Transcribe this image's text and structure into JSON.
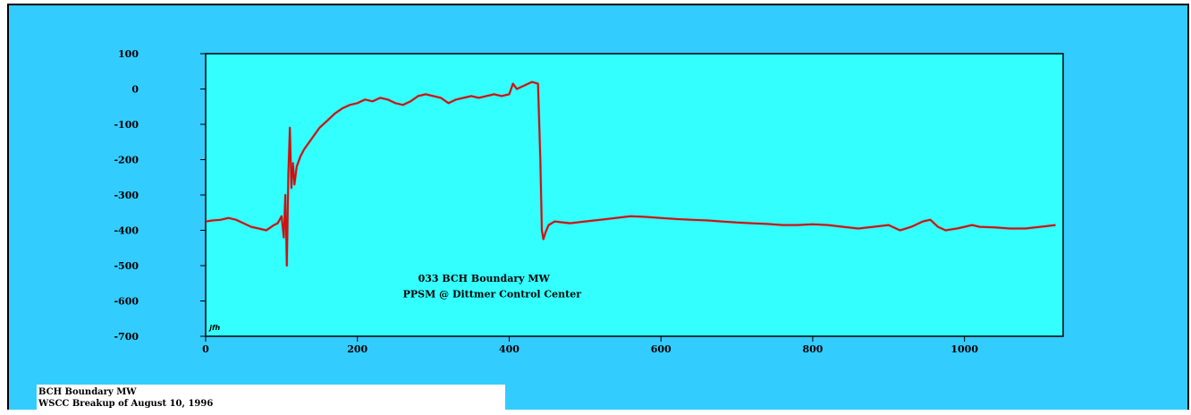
{
  "caption": {
    "line1": "BCH Boundary MW",
    "line2": "WSCC Breakup of August 10, 1996"
  },
  "colors": {
    "background": "#33ccff",
    "plot_area": "#33ffff",
    "trace": "#cc1111",
    "trace_shadow": "#888888"
  },
  "chart_data": {
    "type": "line",
    "title": "",
    "xlabel": "",
    "ylabel": "",
    "xlim": [
      0,
      1130
    ],
    "ylim": [
      -700,
      100
    ],
    "x_ticks": [
      0,
      200,
      400,
      600,
      800,
      1000
    ],
    "y_ticks": [
      100,
      0,
      -100,
      -200,
      -300,
      -400,
      -500,
      -600,
      -700
    ],
    "grid": false,
    "annotations": [
      {
        "text": "033 BCH Boundary MW",
        "x": 280,
        "y": -545
      },
      {
        "text": "PPSM @ Dittmer Control Center",
        "x": 260,
        "y": -590
      },
      {
        "text": "jfh",
        "x": 5,
        "y": -682
      }
    ],
    "series": [
      {
        "x": [
          0,
          10,
          20,
          30,
          40,
          50,
          60,
          70,
          80,
          90,
          95,
          100,
          103,
          105,
          107,
          109,
          111,
          113,
          115,
          117,
          120,
          125,
          130,
          140,
          150,
          160,
          170,
          180,
          190,
          200,
          210,
          220,
          230,
          240,
          250,
          260,
          270,
          280,
          290,
          300,
          310,
          320,
          330,
          340,
          350,
          360,
          370,
          380,
          390,
          400,
          405,
          410,
          420,
          430,
          438,
          441,
          443,
          445,
          448,
          452,
          460,
          480,
          500,
          520,
          540,
          560,
          580,
          600,
          620,
          640,
          660,
          680,
          700,
          720,
          740,
          760,
          780,
          800,
          820,
          840,
          860,
          880,
          900,
          915,
          930,
          945,
          955,
          965,
          975,
          990,
          1000,
          1010,
          1020,
          1040,
          1060,
          1080,
          1100,
          1120
        ],
        "values": [
          -375,
          -372,
          -370,
          -365,
          -370,
          -380,
          -390,
          -395,
          -400,
          -385,
          -380,
          -360,
          -420,
          -300,
          -500,
          -240,
          -110,
          -280,
          -210,
          -270,
          -220,
          -190,
          -170,
          -140,
          -110,
          -90,
          -70,
          -55,
          -45,
          -40,
          -30,
          -35,
          -25,
          -30,
          -40,
          -45,
          -35,
          -20,
          -15,
          -20,
          -25,
          -40,
          -30,
          -25,
          -20,
          -25,
          -20,
          -15,
          -20,
          -15,
          15,
          0,
          10,
          20,
          15,
          -200,
          -400,
          -425,
          -405,
          -385,
          -375,
          -380,
          -375,
          -370,
          -365,
          -360,
          -362,
          -365,
          -368,
          -370,
          -372,
          -375,
          -378,
          -380,
          -382,
          -385,
          -385,
          -383,
          -385,
          -390,
          -395,
          -390,
          -385,
          -400,
          -390,
          -375,
          -370,
          -390,
          -400,
          -395,
          -390,
          -385,
          -390,
          -392,
          -395,
          -395,
          -390,
          -385
        ]
      }
    ]
  }
}
